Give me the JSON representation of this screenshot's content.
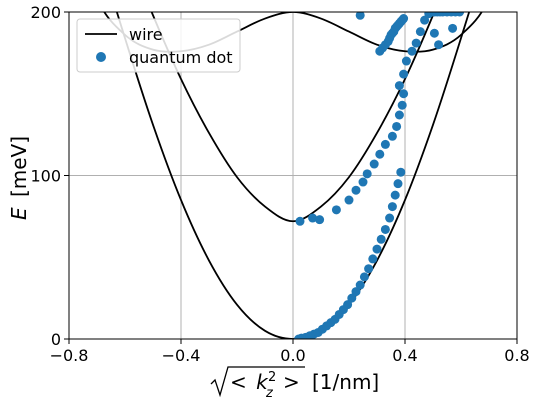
{
  "chart_data": {
    "type": "line+scatter",
    "xlim": [
      -0.8,
      0.8
    ],
    "ylim": [
      0,
      200
    ],
    "xticks": [
      -0.8,
      -0.4,
      0.0,
      0.4,
      0.8
    ],
    "xtick_labels": [
      "−0.8",
      "−0.4",
      "0.0",
      "0.4",
      "0.8"
    ],
    "yticks": [
      0,
      100,
      200
    ],
    "ytick_labels": [
      "0",
      "100",
      "200"
    ],
    "grid": true,
    "ylabel_text": "E",
    "ylabel_unit": "[meV]",
    "xlabel_radicand_pre": "<",
    "xlabel_radicand_base": "k",
    "xlabel_radicand_sup": "2",
    "xlabel_radicand_sub": "z",
    "xlabel_radicand_post": ">",
    "xlabel_unit": "[1/nm]",
    "legend": {
      "placement": "upper-left",
      "entries": [
        "wire",
        "quantum dot"
      ]
    },
    "colors": {
      "line": "#000000",
      "marker": "#1f77b4",
      "grid": "#b0b0b0"
    },
    "series": [
      {
        "name": "wire",
        "kind": "line",
        "bands": [
          {
            "x": [
              -0.8,
              -0.7,
              -0.6,
              -0.5,
              -0.4,
              -0.3,
              -0.2,
              -0.1,
              0.0,
              0.1,
              0.2,
              0.3,
              0.4,
              0.5,
              0.6,
              0.7,
              0.8
            ],
            "y": [
              308,
              241,
              184,
              131,
              85,
              48,
              21,
              5,
              0,
              5,
              21,
              48,
              85,
              131,
              184,
              241,
              308
            ]
          },
          {
            "x": [
              -0.8,
              -0.7,
              -0.6,
              -0.5,
              -0.4,
              -0.3,
              -0.2,
              -0.1,
              0.0,
              0.1,
              0.2,
              0.3,
              0.4,
              0.5,
              0.6,
              0.7,
              0.8
            ],
            "y": [
              345,
              288,
              241,
              198,
              159,
              126,
              99,
              81,
              72,
              81,
              99,
              126,
              159,
              198,
              241,
              288,
              345
            ]
          },
          {
            "x": [
              -0.8,
              -0.7,
              -0.6,
              -0.5,
              -0.4,
              -0.3,
              -0.2,
              -0.1,
              0.0,
              0.1,
              0.2,
              0.3,
              0.4,
              0.5,
              0.6,
              0.7,
              0.8
            ],
            "y": [
              258,
              208,
              186,
              177,
              176,
              180,
              188,
              196,
              200,
              196,
              188,
              180,
              176,
              177,
              186,
              208,
              258
            ]
          }
        ]
      },
      {
        "name": "quantum dot",
        "kind": "scatter",
        "x": [
          0.02,
          0.03,
          0.045,
          0.06,
          0.075,
          0.09,
          0.105,
          0.12,
          0.135,
          0.15,
          0.165,
          0.18,
          0.195,
          0.21,
          0.225,
          0.24,
          0.255,
          0.27,
          0.285,
          0.3,
          0.315,
          0.33,
          0.345,
          0.355,
          0.365,
          0.375,
          0.385,
          0.025,
          0.07,
          0.095,
          0.155,
          0.2,
          0.225,
          0.25,
          0.265,
          0.29,
          0.31,
          0.33,
          0.355,
          0.37,
          0.38,
          0.39,
          0.395,
          0.38,
          0.395,
          0.405,
          0.425,
          0.44,
          0.455,
          0.47,
          0.485,
          0.495,
          0.505,
          0.515,
          0.525,
          0.535,
          0.55,
          0.565,
          0.58,
          0.595,
          0.31,
          0.32,
          0.33,
          0.34,
          0.345,
          0.35,
          0.355,
          0.36,
          0.365,
          0.37,
          0.375,
          0.38,
          0.385,
          0.39,
          0.395,
          0.24,
          0.505,
          0.52,
          0.57
        ],
        "y": [
          0,
          0.5,
          1,
          2,
          3,
          4,
          6,
          8,
          10,
          12,
          15,
          18,
          21,
          25,
          29,
          33,
          38,
          43,
          49,
          55,
          61,
          67,
          74,
          81,
          88,
          95,
          102,
          72,
          74,
          73,
          79,
          85,
          91,
          96,
          101,
          107,
          113,
          119,
          124,
          130,
          137,
          143,
          150,
          155,
          162,
          170,
          176,
          181,
          188,
          195,
          199,
          200,
          200,
          200,
          200,
          200,
          200,
          200,
          200,
          200,
          176,
          178,
          180,
          182,
          184,
          186,
          187,
          188,
          190,
          191,
          192,
          193,
          194,
          195,
          196,
          198,
          187,
          180,
          190
        ]
      }
    ]
  }
}
